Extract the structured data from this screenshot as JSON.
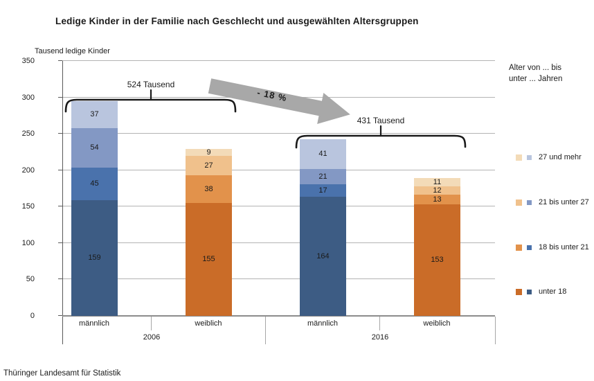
{
  "title": "Ledige Kinder in der Familie nach Geschlecht und ausgewählten Altersgruppen",
  "source": "Thüringer Landesamt für Statistik",
  "chart_data": {
    "type": "bar",
    "variant": "stacked",
    "title": "Ledige Kinder in der Familie nach Geschlecht und ausgewählten Altersgruppen",
    "unit_label": "Tausend ledige Kinder",
    "ylim": [
      0,
      350
    ],
    "ytick_step": 50,
    "grid": true,
    "segment_order_bottom_to_top": [
      "unter 18",
      "18 bis unter 21",
      "21 bis unter 27",
      "27 und mehr"
    ],
    "bars": [
      {
        "gender": "männlich",
        "year": "2006",
        "palette": "blue",
        "values": [
          159,
          45,
          54,
          37
        ]
      },
      {
        "gender": "weiblich",
        "year": "2006",
        "palette": "orange",
        "values": [
          155,
          38,
          27,
          9
        ]
      },
      {
        "gender": "männlich",
        "year": "2016",
        "palette": "blue",
        "values": [
          164,
          17,
          21,
          41
        ]
      },
      {
        "gender": "weiblich",
        "year": "2016",
        "palette": "orange",
        "values": [
          153,
          13,
          12,
          11
        ]
      }
    ],
    "year_groups": [
      {
        "label": "2006",
        "total_annotation": "524 Tausend"
      },
      {
        "label": "2016",
        "total_annotation": "431 Tausend"
      }
    ],
    "change_annotation": "- 18 %",
    "colors": {
      "blue_bottom_to_top": [
        "#3D5C84",
        "#4A72AC",
        "#8398C4",
        "#B9C5DE"
      ],
      "orange_bottom_to_top": [
        "#CA6C28",
        "#E2924B",
        "#F0C18C",
        "#F3DBB8"
      ],
      "arrow": "#A8A8A8",
      "gridline": "#B3B3B3"
    }
  },
  "legend": {
    "header": "Alter von ... bis\nunter ... Jahren",
    "items": [
      {
        "label": "27 und mehr",
        "weiblich_color": "#F3DBB8",
        "maennlich_color": "#B9C5DE"
      },
      {
        "label": "21 bis unter 27",
        "weiblich_color": "#F0C18C",
        "maennlich_color": "#8398C4"
      },
      {
        "label": "18 bis unter 21",
        "weiblich_color": "#E2924B",
        "maennlich_color": "#4A72AC"
      },
      {
        "label": "unter 18",
        "weiblich_color": "#CA6C28",
        "maennlich_color": "#3D5C84"
      }
    ]
  }
}
